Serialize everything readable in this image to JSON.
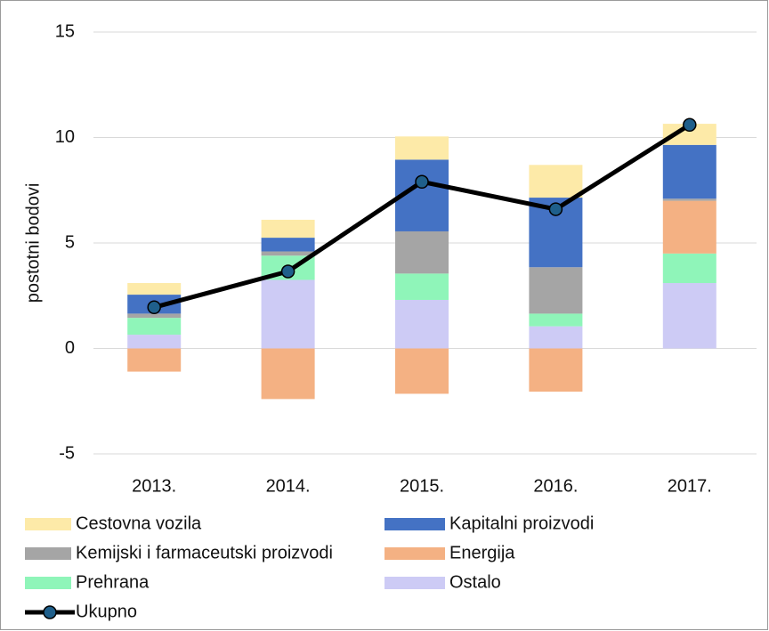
{
  "chart_data": {
    "type": "bar",
    "stacked": true,
    "y_label": "postotni bodovi",
    "categories": [
      "2013.",
      "2014.",
      "2015.",
      "2016.",
      "2017."
    ],
    "ylim": [
      -5,
      15
    ],
    "yticks": [
      -5,
      0,
      5,
      10,
      15
    ],
    "grid": true,
    "series": [
      {
        "name": "Cestovna vozila",
        "color": "#fdeaa8",
        "values": [
          0.55,
          0.85,
          1.1,
          1.55,
          1.0
        ]
      },
      {
        "name": "Kapitalni proizvodi",
        "color": "#4472c4",
        "values": [
          0.9,
          0.65,
          3.4,
          3.3,
          2.55
        ]
      },
      {
        "name": "Kemijski i farmaceutski proizvodi",
        "color": "#a5a5a5",
        "values": [
          0.2,
          0.2,
          2.0,
          2.2,
          0.1
        ]
      },
      {
        "name": "Energija",
        "color": "#f4b183",
        "values": [
          -1.1,
          -2.4,
          -2.15,
          -2.05,
          2.5
        ]
      },
      {
        "name": "Prehrana",
        "color": "#8ff5b9",
        "values": [
          0.8,
          1.15,
          1.25,
          0.6,
          1.4
        ]
      },
      {
        "name": "Ostalo",
        "color": "#cdcbf5",
        "values": [
          0.65,
          3.25,
          2.3,
          1.05,
          3.1
        ]
      },
      {
        "name": "Ukupno",
        "type": "line",
        "color": "#000000",
        "marker_color": "#1f5f8b",
        "values": [
          1.95,
          3.65,
          7.9,
          6.6,
          10.6
        ]
      }
    ]
  }
}
